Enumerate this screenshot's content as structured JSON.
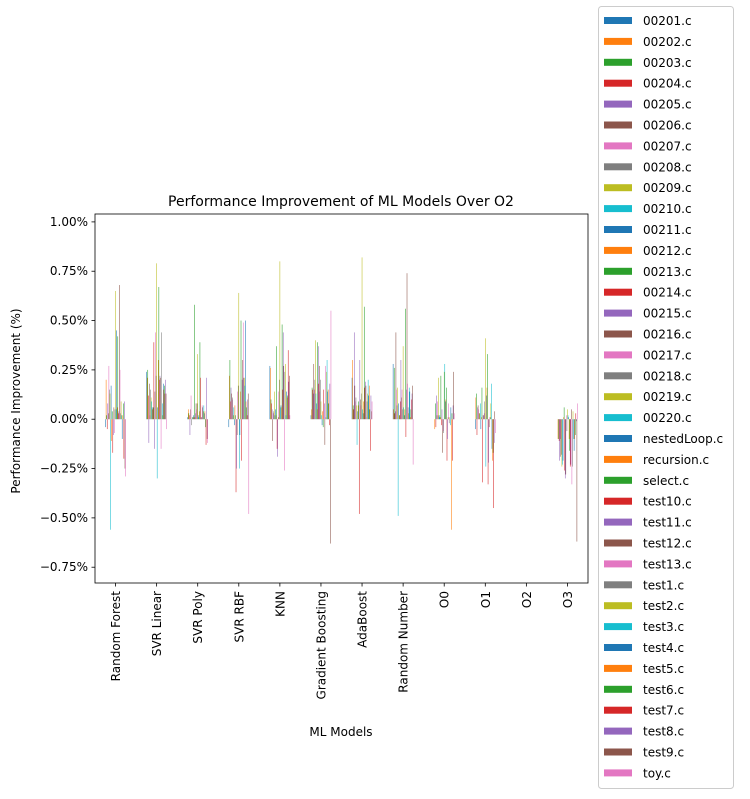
{
  "chart_data": {
    "type": "bar",
    "title": "Performance Improvement of ML Models Over O2",
    "xlabel": "ML Models",
    "ylabel": "Performance Improvement (%)",
    "ylim": [
      -0.0083,
      0.0104
    ],
    "y_ticks": [
      -0.0075,
      -0.005,
      -0.0025,
      0,
      0.0025,
      0.005,
      0.0075,
      0.01
    ],
    "y_tick_labels": [
      "−0.75%",
      "−0.50%",
      "−0.25%",
      "0.00%",
      "0.25%",
      "0.50%",
      "0.75%",
      "1.00%"
    ],
    "grid": false,
    "legend_position": "right",
    "categories": [
      "Random Forest",
      "SVR Linear",
      "SVR Poly",
      "SVR RBF",
      "KNN",
      "Gradient Boosting",
      "AdaBoost",
      "Random Number",
      "O0",
      "O1",
      "O2",
      "O3"
    ],
    "colors": [
      "#1f77b4",
      "#ff7f0e",
      "#2ca02c",
      "#d62728",
      "#9467bd",
      "#8c564b",
      "#e377c2",
      "#7f7f7f",
      "#bcbd22",
      "#17becf"
    ],
    "series": [
      {
        "name": "00201.c",
        "values": [
          -0.0004,
          0.0024,
          0.0001,
          -0.0004,
          0.0027,
          0.0002,
          0.0021,
          0.0028,
          0.0,
          -0.0005,
          0.0,
          0.0
        ]
      },
      {
        "name": "00202.c",
        "values": [
          0.002,
          0.0021,
          0.0005,
          0.0022,
          0.0026,
          0.0005,
          0.003,
          0.0005,
          -0.0005,
          0.0011,
          0.0,
          -0.001
        ]
      },
      {
        "name": "00203.c",
        "values": [
          0.0002,
          0.0025,
          0.0003,
          0.003,
          0.001,
          0.0016,
          0.0007,
          0.0026,
          0.0008,
          0.0013,
          0.0,
          -0.001
        ]
      },
      {
        "name": "00204.c",
        "values": [
          -0.0005,
          0.0012,
          0.0002,
          0.0009,
          0.0008,
          0.0015,
          0.0005,
          0.0003,
          -0.0004,
          -0.0008,
          0.0,
          -0.0011
        ]
      },
      {
        "name": "00205.c",
        "values": [
          0.0008,
          -0.0012,
          -0.0008,
          0.0016,
          0.0005,
          0.0013,
          0.0044,
          0.0004,
          0.0012,
          0.0006,
          0.0,
          -0.0021
        ]
      },
      {
        "name": "00206.c",
        "values": [
          0.0003,
          0.0018,
          0.0005,
          0.0013,
          -0.0011,
          0.0028,
          0.0017,
          0.0044,
          0.0002,
          0.0007,
          0.0,
          -0.0019
        ]
      },
      {
        "name": "00207.c",
        "values": [
          0.0027,
          0.0002,
          0.0012,
          0.001,
          0.0003,
          0.0015,
          0.0009,
          0.0015,
          0.0009,
          0.0005,
          0.0,
          -0.001
        ]
      },
      {
        "name": "00208.c",
        "values": [
          0.0015,
          0.0015,
          -0.0003,
          0.0011,
          0.0004,
          0.002,
          0.0011,
          0.0007,
          0.0002,
          0.0003,
          0.0,
          -0.0018
        ]
      },
      {
        "name": "00209.c",
        "values": [
          0.0013,
          0.0011,
          0.0001,
          0.0002,
          0.0014,
          0.004,
          0.0007,
          0.0016,
          0.0021,
          0.0003,
          0.0,
          -0.0024
        ]
      },
      {
        "name": "00210.c",
        "values": [
          -0.0056,
          0.0009,
          0.0001,
          0.0006,
          0.0002,
          0.0013,
          -0.0013,
          -0.0049,
          0.0001,
          0.0008,
          0.0,
          -0.0023
        ]
      },
      {
        "name": "00211.c",
        "values": [
          0.0017,
          0.0006,
          0.0002,
          -0.0003,
          0.0005,
          0.0008,
          0.0004,
          0.0008,
          0.0002,
          -0.0005,
          0.0,
          -0.0021
        ]
      },
      {
        "name": "00212.c",
        "values": [
          -0.0011,
          0.0005,
          0.0001,
          0.0007,
          0.0002,
          0.0005,
          0.0007,
          0.0002,
          0.0001,
          0.0001,
          0.0,
          0.0001
        ]
      },
      {
        "name": "00213.c",
        "values": [
          0.0004,
          0.0006,
          0.0058,
          0.0002,
          0.0037,
          0.0039,
          0.0009,
          0.0002,
          0.0022,
          0.0016,
          0.0,
          0.0006
        ]
      },
      {
        "name": "00214.c",
        "values": [
          -0.0017,
          0.0039,
          0.0001,
          -0.0037,
          -0.0015,
          0.0018,
          -0.0048,
          0.0009,
          -0.0003,
          -0.0032,
          0.0,
          -0.0026
        ]
      },
      {
        "name": "00215.c",
        "values": [
          -0.0008,
          -0.0015,
          0.0003,
          -0.0025,
          -0.0019,
          0.0037,
          0.003,
          0.003,
          0.0005,
          0.0002,
          0.0,
          -0.003
        ]
      },
      {
        "name": "00216.c",
        "values": [
          0.0006,
          0.0014,
          0.0008,
          -0.0008,
          0.0001,
          0.0027,
          0.001,
          0.0011,
          -0.0017,
          0.0002,
          0.0,
          -0.0028
        ]
      },
      {
        "name": "00217.c",
        "values": [
          -0.0007,
          0.0044,
          0.0005,
          0.0014,
          0.0014,
          0.0014,
          0.0007,
          0.0015,
          -0.0006,
          0.0003,
          0.0,
          0.0002
        ]
      },
      {
        "name": "00218.c",
        "values": [
          0.0005,
          0.0022,
          0.0008,
          0.0017,
          0.002,
          0.002,
          0.0013,
          0.0005,
          -0.0007,
          0.0009,
          0.0,
          -0.0006
        ]
      },
      {
        "name": "00219.c",
        "values": [
          0.0065,
          0.0079,
          0.0033,
          0.0064,
          0.008,
          0.0009,
          0.0082,
          0.0037,
          0.0024,
          0.0041,
          0.0,
          0.0005
        ]
      },
      {
        "name": "00220.c",
        "values": [
          0.0005,
          -0.003,
          0.0001,
          -0.0025,
          0.0006,
          0.0002,
          0.0005,
          0.0006,
          0.0028,
          -0.0024,
          0.0,
          0.0002
        ]
      },
      {
        "name": "nestedLoop.c",
        "values": [
          0.0045,
          0.0006,
          0.0002,
          -0.0008,
          0.0007,
          -0.0003,
          0.0003,
          0.0002,
          0.0009,
          0.0012,
          0.0,
          0.0001
        ]
      },
      {
        "name": "recursion.c",
        "values": [
          0.0006,
          0.003,
          0.0004,
          0.0014,
          0.0006,
          0.0004,
          0.0009,
          0.0005,
          0.001,
          0.0016,
          0.0,
          -0.001
        ]
      },
      {
        "name": "select.c",
        "values": [
          0.0042,
          0.0067,
          0.0039,
          0.005,
          0.0048,
          -0.0004,
          0.0057,
          0.0056,
          0.0016,
          0.0033,
          0.0,
          -0.0016
        ]
      },
      {
        "name": "test10.c",
        "values": [
          0.0003,
          0.002,
          0.0021,
          -0.0021,
          0.0015,
          0.0015,
          0.0016,
          -0.0009,
          -0.0021,
          -0.0033,
          0.0,
          -0.0024
        ]
      },
      {
        "name": "test11.c",
        "values": [
          0.0004,
          0.0022,
          0.0001,
          0.002,
          0.0044,
          0.0008,
          0.0019,
          0.0015,
          -0.001,
          -0.0022,
          0.0,
          -0.0023
        ]
      },
      {
        "name": "test12.c",
        "values": [
          0.0068,
          0.0021,
          0.0001,
          0.003,
          0.0027,
          -0.0013,
          0.0017,
          0.0074,
          0.0001,
          -0.0004,
          0.0,
          0.0005
        ]
      },
      {
        "name": "test13.c",
        "values": [
          0.0025,
          -0.0015,
          0.0007,
          0.0049,
          -0.0026,
          0.0027,
          0.0001,
          0.0018,
          0.0008,
          0.0001,
          0.0,
          -0.0033
        ]
      },
      {
        "name": "test1.c",
        "values": [
          0.0003,
          0.0044,
          0.0006,
          0.0021,
          0.0024,
          0.0001,
          0.0009,
          0.0006,
          -0.0002,
          0.0001,
          0.0,
          -0.0024
        ]
      },
      {
        "name": "test2.c",
        "values": [
          0.0009,
          0.0002,
          0.0004,
          0.0021,
          0.0028,
          0.0024,
          0.0013,
          0.0003,
          0.0001,
          0.0008,
          0.0,
          0.0004
        ]
      },
      {
        "name": "test3.c",
        "values": [
          0.0002,
          0.0008,
          0.0007,
          0.0017,
          0.0002,
          0.003,
          0.002,
          0.0016,
          -0.0003,
          0.0018,
          0.0,
          -0.001
        ]
      },
      {
        "name": "test4.c",
        "values": [
          -0.001,
          0.0018,
          0.0003,
          0.005,
          0.0014,
          0.0014,
          0.0012,
          0.0014,
          0.0006,
          -0.0015,
          0.0,
          -0.0016
        ]
      },
      {
        "name": "test5.c",
        "values": [
          0.0002,
          0.0015,
          0.0004,
          0.0009,
          0.0011,
          0.0015,
          0.0017,
          0.0001,
          -0.0056,
          -0.0021,
          0.0,
          -0.001
        ]
      },
      {
        "name": "test6.c",
        "values": [
          0.0008,
          0.0017,
          -0.0004,
          0.0006,
          0.0012,
          0.0008,
          0.0005,
          0.0005,
          0.0003,
          -0.0017,
          0.0,
          -0.0008
        ]
      },
      {
        "name": "test7.c",
        "values": [
          -0.002,
          0.0013,
          -0.0013,
          0.0002,
          0.0035,
          -0.0003,
          -0.0016,
          0.001,
          -0.0021,
          -0.0045,
          0.0,
          0.0003
        ]
      },
      {
        "name": "test8.c",
        "values": [
          0.0009,
          0.002,
          0.0021,
          0.001,
          0.0019,
          0.0018,
          0.0012,
          0.0013,
          0.0007,
          -0.0012,
          0.0,
          -0.0001
        ]
      },
      {
        "name": "test9.c",
        "values": [
          -0.0025,
          0.0013,
          -0.001,
          0.0013,
          0.0022,
          -0.0063,
          0.0004,
          0.0017,
          0.0024,
          0.0004,
          0.0,
          -0.0062
        ]
      },
      {
        "name": "toy.c",
        "values": [
          -0.0029,
          -0.0005,
          -0.0012,
          -0.0048,
          0.0002,
          0.0055,
          0.0009,
          -0.0023,
          0.0003,
          -0.0007,
          0.0,
          0.0008
        ]
      }
    ]
  }
}
